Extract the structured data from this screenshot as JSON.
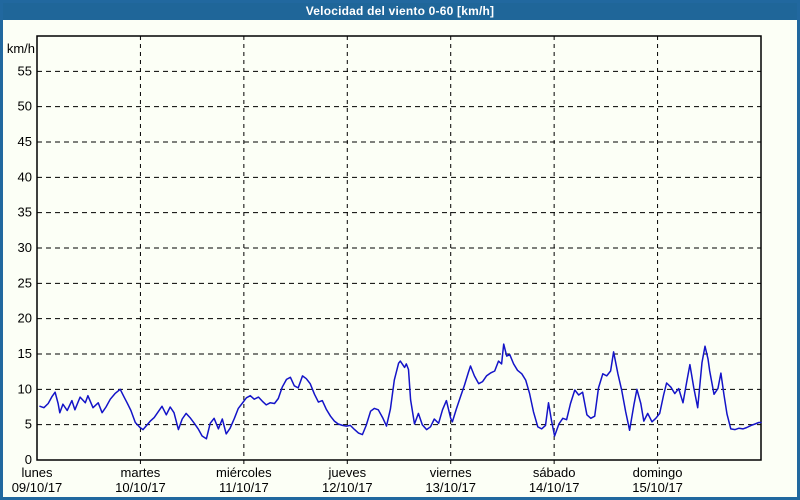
{
  "window": {
    "title": "Velocidad del viento 0-60 [km/h]"
  },
  "colors": {
    "titlebar_bg": "#1f6699",
    "window_border": "#21689f",
    "background": "#fcfff6",
    "plot_frame": "#000000",
    "grid": "#000000",
    "line": "#1414c8",
    "title_text": "#ffffff",
    "axis_text": "#000000"
  },
  "chart_data": {
    "type": "line",
    "title": "Velocidad del viento 0-60 [km/h]",
    "ylabel": "km/h",
    "ylim": [
      0,
      60
    ],
    "yticks": [
      0,
      5,
      10,
      15,
      20,
      25,
      30,
      35,
      40,
      45,
      50,
      55
    ],
    "grid": true,
    "x_unit": "hours",
    "xlim": [
      0,
      168
    ],
    "day_span_hours": 24,
    "days": [
      {
        "name": "lunes",
        "date": "09/10/17"
      },
      {
        "name": "martes",
        "date": "10/10/17"
      },
      {
        "name": "miércoles",
        "date": "11/10/17"
      },
      {
        "name": "jueves",
        "date": "12/10/17"
      },
      {
        "name": "viernes",
        "date": "13/10/17"
      },
      {
        "name": "sábado",
        "date": "14/10/17"
      },
      {
        "name": "domingo",
        "date": "15/10/17"
      }
    ],
    "series": [
      {
        "name": "Velocidad del viento",
        "color": "#1414c8",
        "points": [
          [
            0.7,
            7.6
          ],
          [
            1.6,
            7.4
          ],
          [
            2.6,
            8.0
          ],
          [
            3.5,
            9.0
          ],
          [
            4.2,
            9.6
          ],
          [
            4.9,
            8.0
          ],
          [
            5.3,
            6.7
          ],
          [
            6.0,
            7.9
          ],
          [
            7.0,
            7.0
          ],
          [
            8.1,
            8.4
          ],
          [
            8.8,
            7.1
          ],
          [
            10.0,
            8.9
          ],
          [
            11.2,
            8.1
          ],
          [
            11.8,
            9.1
          ],
          [
            13.0,
            7.4
          ],
          [
            14.2,
            8.1
          ],
          [
            15.1,
            6.7
          ],
          [
            16.0,
            7.5
          ],
          [
            17.0,
            8.6
          ],
          [
            18.1,
            9.4
          ],
          [
            19.3,
            10.0
          ],
          [
            20.2,
            8.9
          ],
          [
            20.9,
            8.1
          ],
          [
            21.8,
            7.0
          ],
          [
            22.8,
            5.3
          ],
          [
            23.9,
            4.6
          ],
          [
            24.6,
            4.3
          ],
          [
            25.3,
            4.8
          ],
          [
            26.3,
            5.5
          ],
          [
            27.2,
            6.0
          ],
          [
            28.1,
            6.8
          ],
          [
            29.0,
            7.6
          ],
          [
            30.0,
            6.4
          ],
          [
            30.9,
            7.5
          ],
          [
            31.8,
            6.7
          ],
          [
            32.8,
            4.3
          ],
          [
            33.7,
            5.8
          ],
          [
            34.6,
            6.6
          ],
          [
            35.5,
            6.0
          ],
          [
            36.5,
            5.2
          ],
          [
            37.4,
            4.4
          ],
          [
            38.3,
            3.4
          ],
          [
            39.3,
            3.0
          ],
          [
            40.2,
            5.2
          ],
          [
            41.1,
            5.9
          ],
          [
            42.1,
            4.4
          ],
          [
            43.0,
            5.8
          ],
          [
            43.9,
            3.7
          ],
          [
            44.8,
            4.5
          ],
          [
            45.8,
            5.9
          ],
          [
            46.7,
            7.3
          ],
          [
            47.6,
            8.0
          ],
          [
            48.6,
            8.8
          ],
          [
            49.5,
            9.1
          ],
          [
            50.4,
            8.6
          ],
          [
            51.4,
            8.9
          ],
          [
            52.3,
            8.3
          ],
          [
            53.2,
            7.8
          ],
          [
            54.1,
            8.1
          ],
          [
            55.1,
            8.0
          ],
          [
            56.0,
            8.7
          ],
          [
            56.9,
            10.3
          ],
          [
            57.9,
            11.4
          ],
          [
            58.8,
            11.7
          ],
          [
            59.7,
            10.5
          ],
          [
            60.6,
            10.2
          ],
          [
            61.6,
            11.9
          ],
          [
            62.5,
            11.5
          ],
          [
            63.4,
            10.8
          ],
          [
            64.4,
            9.3
          ],
          [
            65.3,
            8.2
          ],
          [
            66.2,
            8.4
          ],
          [
            67.1,
            7.2
          ],
          [
            68.1,
            6.2
          ],
          [
            69.0,
            5.5
          ],
          [
            69.9,
            5.1
          ],
          [
            70.9,
            4.9
          ],
          [
            71.8,
            4.8
          ],
          [
            72.7,
            4.9
          ],
          [
            73.7,
            4.3
          ],
          [
            74.6,
            3.8
          ],
          [
            75.5,
            3.6
          ],
          [
            76.4,
            4.9
          ],
          [
            77.4,
            6.9
          ],
          [
            78.3,
            7.3
          ],
          [
            79.2,
            7.1
          ],
          [
            80.2,
            6.0
          ],
          [
            81.1,
            4.8
          ],
          [
            82.0,
            7.2
          ],
          [
            82.9,
            11.3
          ],
          [
            83.9,
            13.7
          ],
          [
            84.3,
            14.0
          ],
          [
            85.3,
            13.1
          ],
          [
            85.7,
            13.6
          ],
          [
            86.2,
            12.8
          ],
          [
            86.7,
            8.5
          ],
          [
            87.6,
            5.1
          ],
          [
            88.5,
            6.6
          ],
          [
            89.4,
            5.0
          ],
          [
            90.4,
            4.3
          ],
          [
            91.3,
            4.7
          ],
          [
            92.2,
            5.8
          ],
          [
            93.2,
            5.2
          ],
          [
            94.1,
            7.1
          ],
          [
            95.0,
            8.4
          ],
          [
            96.0,
            5.9
          ],
          [
            96.4,
            5.4
          ],
          [
            97.3,
            7.2
          ],
          [
            98.3,
            9.0
          ],
          [
            99.2,
            10.6
          ],
          [
            100.1,
            12.4
          ],
          [
            100.6,
            13.3
          ],
          [
            101.5,
            11.9
          ],
          [
            102.5,
            10.8
          ],
          [
            103.4,
            11.1
          ],
          [
            104.3,
            11.9
          ],
          [
            105.2,
            12.3
          ],
          [
            106.2,
            12.6
          ],
          [
            107.1,
            14.0
          ],
          [
            107.8,
            13.6
          ],
          [
            108.3,
            16.4
          ],
          [
            109.0,
            14.7
          ],
          [
            109.7,
            14.9
          ],
          [
            110.6,
            13.6
          ],
          [
            111.5,
            12.7
          ],
          [
            112.5,
            12.2
          ],
          [
            113.4,
            11.3
          ],
          [
            114.3,
            9.4
          ],
          [
            115.2,
            6.8
          ],
          [
            116.2,
            4.7
          ],
          [
            117.1,
            4.4
          ],
          [
            118.0,
            4.9
          ],
          [
            118.7,
            8.1
          ],
          [
            119.4,
            5.5
          ],
          [
            120.1,
            3.4
          ],
          [
            121.1,
            5.1
          ],
          [
            122.0,
            5.9
          ],
          [
            122.9,
            5.7
          ],
          [
            123.8,
            8.0
          ],
          [
            124.8,
            9.9
          ],
          [
            125.7,
            9.2
          ],
          [
            126.6,
            9.6
          ],
          [
            127.6,
            6.4
          ],
          [
            128.5,
            5.9
          ],
          [
            129.4,
            6.2
          ],
          [
            130.3,
            10.2
          ],
          [
            131.3,
            12.2
          ],
          [
            132.2,
            11.9
          ],
          [
            133.1,
            12.6
          ],
          [
            133.8,
            15.3
          ],
          [
            134.8,
            12.2
          ],
          [
            135.7,
            9.8
          ],
          [
            136.6,
            6.8
          ],
          [
            137.5,
            4.2
          ],
          [
            138.5,
            7.8
          ],
          [
            139.2,
            10.0
          ],
          [
            140.1,
            8.0
          ],
          [
            140.8,
            5.5
          ],
          [
            141.7,
            6.6
          ],
          [
            142.7,
            5.4
          ],
          [
            143.6,
            5.9
          ],
          [
            144.5,
            6.6
          ],
          [
            145.4,
            9.2
          ],
          [
            146.1,
            10.9
          ],
          [
            147.1,
            10.3
          ],
          [
            148.0,
            9.4
          ],
          [
            148.9,
            10.1
          ],
          [
            149.9,
            8.1
          ],
          [
            150.8,
            11.2
          ],
          [
            151.5,
            13.5
          ],
          [
            152.4,
            10.2
          ],
          [
            153.3,
            7.4
          ],
          [
            154.3,
            13.8
          ],
          [
            155.0,
            16.1
          ],
          [
            155.7,
            14.3
          ],
          [
            156.1,
            12.6
          ],
          [
            157.1,
            9.3
          ],
          [
            158.0,
            10.1
          ],
          [
            158.7,
            12.3
          ],
          [
            159.4,
            9.3
          ],
          [
            160.1,
            6.5
          ],
          [
            161.0,
            4.4
          ],
          [
            162.0,
            4.3
          ],
          [
            162.9,
            4.5
          ],
          [
            163.8,
            4.4
          ],
          [
            164.7,
            4.6
          ],
          [
            165.7,
            4.9
          ],
          [
            166.6,
            5.1
          ],
          [
            167.5,
            5.3
          ],
          [
            168.0,
            5.3
          ]
        ]
      }
    ]
  }
}
